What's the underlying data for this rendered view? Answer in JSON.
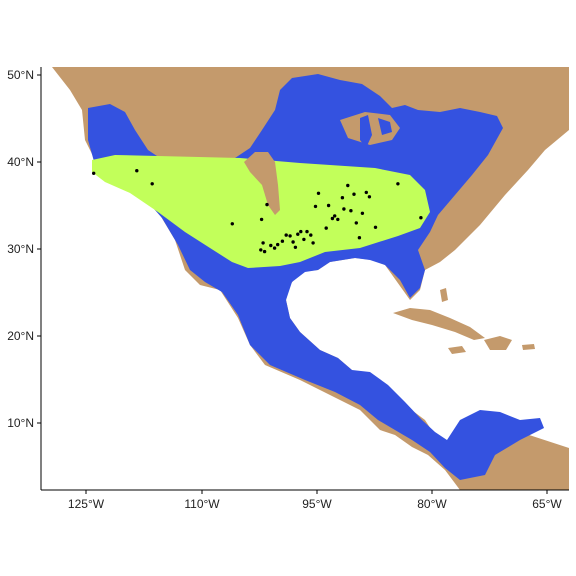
{
  "colors": {
    "background": "#ffffff",
    "land": "#c49a6c",
    "range": "#3452e0",
    "highlight": "#c2ff5a",
    "points": "#000000",
    "axis": "#000000"
  },
  "axes": {
    "y_ticks": [
      "50°N",
      "40°N",
      "30°N",
      "20°N",
      "10°N"
    ],
    "x_ticks": [
      "125°W",
      "110°W",
      "95°W",
      "80°W",
      "65°W"
    ]
  },
  "layers": [
    "land",
    "species-range",
    "highlighted-region",
    "occurrence-points"
  ],
  "occurrences_lon_lat": [
    [
      -124.0,
      38.7
    ],
    [
      -118.4,
      39.0
    ],
    [
      -116.4,
      37.5
    ],
    [
      -106.0,
      32.9
    ],
    [
      -102.2,
      33.4
    ],
    [
      -101.5,
      35.1
    ],
    [
      -102.0,
      30.7
    ],
    [
      -102.3,
      29.9
    ],
    [
      -101.8,
      29.7
    ],
    [
      -101.0,
      30.4
    ],
    [
      -100.5,
      30.1
    ],
    [
      -100.1,
      30.5
    ],
    [
      -99.5,
      30.9
    ],
    [
      -99.0,
      31.6
    ],
    [
      -98.5,
      31.5
    ],
    [
      -98.1,
      30.8
    ],
    [
      -97.8,
      30.2
    ],
    [
      -97.5,
      31.7
    ],
    [
      -97.1,
      32.0
    ],
    [
      -96.7,
      31.1
    ],
    [
      -96.3,
      32.0
    ],
    [
      -95.8,
      31.6
    ],
    [
      -95.5,
      30.7
    ],
    [
      -95.2,
      34.9
    ],
    [
      -94.8,
      36.4
    ],
    [
      -93.8,
      32.4
    ],
    [
      -93.5,
      35.0
    ],
    [
      -93.0,
      33.5
    ],
    [
      -92.7,
      33.8
    ],
    [
      -92.3,
      33.4
    ],
    [
      -91.7,
      35.9
    ],
    [
      -91.5,
      34.6
    ],
    [
      -91.0,
      37.3
    ],
    [
      -90.6,
      34.4
    ],
    [
      -90.2,
      36.3
    ],
    [
      -89.9,
      33.0
    ],
    [
      -89.5,
      31.3
    ],
    [
      -89.1,
      34.1
    ],
    [
      -88.6,
      36.5
    ],
    [
      -88.2,
      36.0
    ],
    [
      -87.4,
      32.5
    ],
    [
      -84.5,
      37.5
    ],
    [
      -81.5,
      33.6
    ]
  ]
}
